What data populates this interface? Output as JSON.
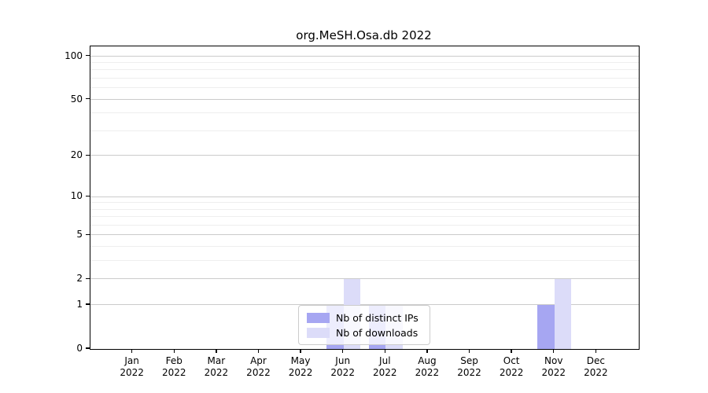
{
  "chart_data": {
    "type": "bar",
    "title": "org.MeSH.Osa.db 2022",
    "categories": [
      "Jan",
      "Feb",
      "Mar",
      "Apr",
      "May",
      "Jun",
      "Jul",
      "Aug",
      "Sep",
      "Oct",
      "Nov",
      "Dec"
    ],
    "category_year": "2022",
    "series": [
      {
        "name": "Nb of distinct IPs",
        "color": "#a6a6f2",
        "values": [
          0,
          0,
          0,
          0,
          0,
          1,
          1,
          0,
          0,
          0,
          1,
          0
        ]
      },
      {
        "name": "Nb of downloads",
        "color": "#dcdcf9",
        "values": [
          0,
          0,
          0,
          0,
          0,
          2,
          1,
          0,
          0,
          0,
          2,
          0
        ]
      }
    ],
    "yscale": "log1p",
    "ylim": [
      0,
      117
    ],
    "yticks": [
      0,
      1,
      2,
      5,
      10,
      20,
      50,
      100
    ],
    "minor_gridlines": [
      3,
      4,
      6,
      7,
      8,
      9,
      30,
      40,
      60,
      70,
      80,
      90
    ],
    "grid": "horizontal",
    "legend_position": "lower center",
    "colors": {
      "major_grid": "#cbcbcb",
      "minor_grid": "#eeeeee",
      "axis": "#000000"
    }
  }
}
